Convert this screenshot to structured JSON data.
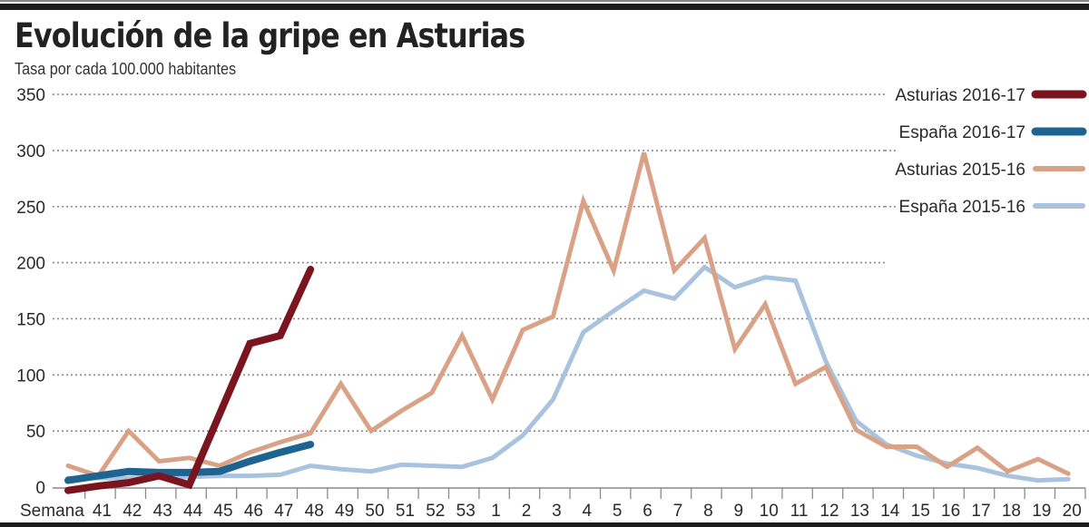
{
  "header": {
    "title": "Evolución de la gripe en Asturias",
    "subtitle": "Tasa por cada 100.000 habitantes"
  },
  "chart_data": {
    "type": "line",
    "title": "Evolución de la gripe en Asturias",
    "subtitle": "Tasa por cada 100.000 habitantes",
    "xlabel": "Semana",
    "ylabel": "Tasa por cada 100.000 habitantes",
    "ylim": [
      0,
      350
    ],
    "yticks": [
      0,
      50,
      100,
      150,
      200,
      250,
      300,
      350
    ],
    "grid": "horizontal dotted",
    "legend_position": "top-right",
    "x_labels": [
      "41",
      "42",
      "43",
      "44",
      "45",
      "46",
      "47",
      "48",
      "49",
      "50",
      "51",
      "52",
      "53",
      "1",
      "2",
      "3",
      "4",
      "5",
      "6",
      "7",
      "8",
      "9",
      "10",
      "11",
      "12",
      "13",
      "14",
      "15",
      "16",
      "17",
      "18",
      "19",
      "20"
    ],
    "x": [
      "40",
      "41",
      "42",
      "43",
      "44",
      "45",
      "46",
      "47",
      "48",
      "49",
      "50",
      "51",
      "52",
      "53",
      "1",
      "2",
      "3",
      "4",
      "5",
      "6",
      "7",
      "8",
      "9",
      "10",
      "11",
      "12",
      "13",
      "14",
      "15",
      "16",
      "17",
      "18",
      "19",
      "20"
    ],
    "series": [
      {
        "name": "Asturias 2016-17",
        "color": "#7a1520",
        "width": 8,
        "values": [
          -3,
          1,
          4,
          10,
          2,
          65,
          128,
          135,
          194
        ]
      },
      {
        "name": "España 2016-17",
        "color": "#1d6491",
        "width": 8,
        "values": [
          6,
          10,
          14,
          13,
          13,
          14,
          23,
          31,
          38
        ]
      },
      {
        "name": "Asturias 2015-16",
        "color": "#d9a287",
        "width": 5,
        "values": [
          19,
          10,
          50,
          23,
          26,
          19,
          31,
          40,
          48,
          92,
          50,
          68,
          84,
          135,
          78,
          140,
          152,
          255,
          193,
          298,
          193,
          222,
          123,
          163,
          92,
          107,
          51,
          36,
          36,
          18,
          35,
          14,
          25,
          12
        ]
      },
      {
        "name": "España 2015-16",
        "color": "#a9c3de",
        "width": 5,
        "values": [
          8,
          8,
          8,
          9,
          9,
          10,
          10,
          11,
          19,
          16,
          14,
          20,
          19,
          18,
          26,
          46,
          78,
          138,
          157,
          175,
          168,
          196,
          178,
          187,
          184,
          112,
          59,
          38,
          28,
          21,
          17,
          10,
          6,
          7
        ]
      }
    ]
  }
}
